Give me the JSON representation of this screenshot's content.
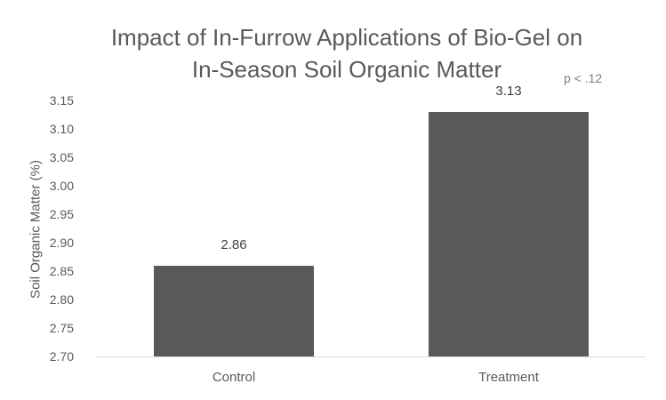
{
  "chart_data": {
    "type": "bar",
    "title": "Impact of In-Furrow Applications of Bio-Gel on In-Season Soil Organic Matter",
    "title_lines": [
      "Impact of In-Furrow Applications of Bio-Gel on",
      "In-Season Soil Organic Matter"
    ],
    "annotation": "p < .12",
    "xlabel": "",
    "ylabel": "Soil Organic Matter (%)",
    "categories": [
      "Control",
      "Treatment"
    ],
    "values": [
      2.86,
      3.13
    ],
    "data_labels": [
      "2.86",
      "3.13"
    ],
    "ylim": [
      2.7,
      3.15
    ],
    "yticks": [
      "3.15",
      "3.10",
      "3.05",
      "3.00",
      "2.95",
      "2.90",
      "2.85",
      "2.80",
      "2.75",
      "2.70"
    ],
    "grid": false,
    "legend": "none",
    "bar_color": "#595959"
  }
}
